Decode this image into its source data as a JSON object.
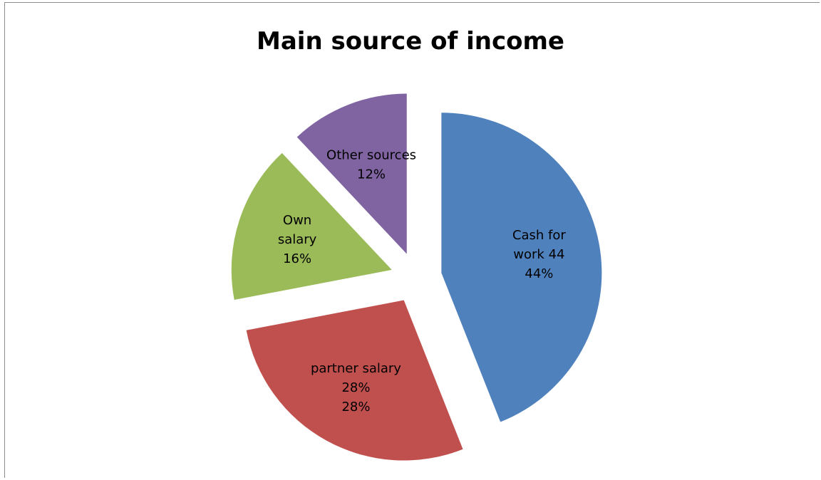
{
  "chart_data": {
    "type": "pie",
    "title": "Main source of income",
    "exploded": true,
    "start_angle": "12 o'clock, clockwise",
    "slices": [
      {
        "label": "Cash for work 44",
        "value": 44,
        "percent_label": "44%",
        "color": "#4F81BD"
      },
      {
        "label": "partner salary 28%",
        "value": 28,
        "percent_label": "28%",
        "color": "#C0504D"
      },
      {
        "label": "Own salary",
        "value": 16,
        "percent_label": "16%",
        "color": "#9BBB59"
      },
      {
        "label": "Other sources",
        "value": 12,
        "percent_label": "12%",
        "color": "#8064A2"
      }
    ]
  }
}
